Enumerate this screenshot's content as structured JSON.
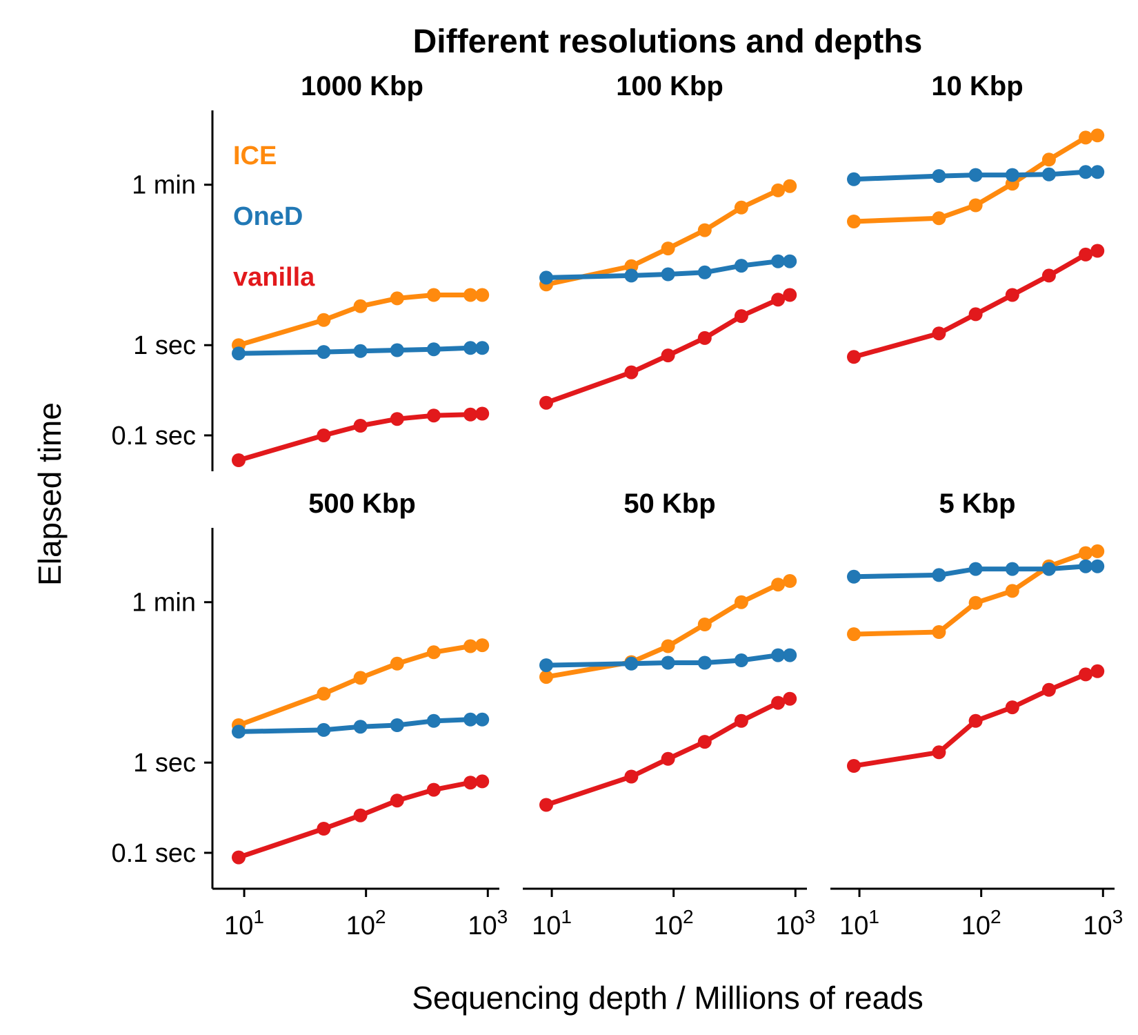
{
  "chart_data": {
    "type": "line",
    "title": "Different resolutions and depths",
    "xlabel": "Sequencing depth / Millions of reads",
    "ylabel": "Elapsed time",
    "x_scale": "log10",
    "y_scale": "log10",
    "xlim": [
      7.5,
      1150
    ],
    "ylim_seconds": [
      0.04,
      400
    ],
    "x_ticks": [
      {
        "value": 10,
        "base": "10",
        "exp": "1"
      },
      {
        "value": 100,
        "base": "10",
        "exp": "2"
      },
      {
        "value": 1000,
        "base": "10",
        "exp": "3"
      }
    ],
    "y_ticks": [
      {
        "value": 0.1,
        "label": "0.1 sec"
      },
      {
        "value": 1,
        "label": "1 sec"
      },
      {
        "value": 60,
        "label": "1 min"
      }
    ],
    "legend": {
      "placement": "top-left",
      "entries": [
        "ICE",
        "OneD",
        "vanilla"
      ]
    },
    "colors": {
      "ICE": "#ff8a0e",
      "OneD": "#2178b5",
      "vanilla": "#e2191c"
    },
    "x": [
      9,
      45,
      90,
      180,
      360,
      720,
      900
    ],
    "panels": [
      {
        "label": "1000 Kbp",
        "series": [
          {
            "name": "ICE",
            "values": [
              1.0,
              1.9,
              2.7,
              3.3,
              3.6,
              3.6,
              3.6
            ]
          },
          {
            "name": "OneD",
            "values": [
              0.81,
              0.84,
              0.86,
              0.88,
              0.9,
              0.93,
              0.93
            ]
          },
          {
            "name": "vanilla",
            "values": [
              0.053,
              0.1,
              0.128,
              0.152,
              0.166,
              0.17,
              0.174
            ]
          }
        ]
      },
      {
        "label": "100 Kbp",
        "series": [
          {
            "name": "ICE",
            "values": [
              4.7,
              7.5,
              11.8,
              18.8,
              33.5,
              52,
              58
            ]
          },
          {
            "name": "OneD",
            "values": [
              5.6,
              5.9,
              6.1,
              6.4,
              7.6,
              8.5,
              8.5
            ]
          },
          {
            "name": "vanilla",
            "values": [
              0.23,
              0.5,
              0.77,
              1.2,
              2.1,
              3.2,
              3.6
            ]
          }
        ]
      },
      {
        "label": "10 Kbp",
        "series": [
          {
            "name": "ICE",
            "values": [
              23.5,
              25.5,
              35.5,
              61.5,
              114,
              200,
              211
            ]
          },
          {
            "name": "OneD",
            "values": [
              69,
              75,
              77,
              77,
              78,
              83,
              83
            ]
          },
          {
            "name": "vanilla",
            "values": [
              0.74,
              1.35,
              2.2,
              3.6,
              5.9,
              10.1,
              11.1
            ]
          }
        ]
      },
      {
        "label": "500 Kbp",
        "series": [
          {
            "name": "ICE",
            "values": [
              2.6,
              5.8,
              8.7,
              12.5,
              16.7,
              19.5,
              20
            ]
          },
          {
            "name": "OneD",
            "values": [
              2.2,
              2.3,
              2.5,
              2.6,
              2.9,
              3.0,
              3.0
            ]
          },
          {
            "name": "vanilla",
            "values": [
              0.089,
              0.185,
              0.26,
              0.38,
              0.5,
              0.6,
              0.62
            ]
          }
        ]
      },
      {
        "label": "50 Kbp",
        "series": [
          {
            "name": "ICE",
            "values": [
              8.9,
              13,
              19.5,
              34,
              60,
              94,
              103
            ]
          },
          {
            "name": "OneD",
            "values": [
              12,
              12.5,
              12.8,
              12.8,
              13.6,
              15.5,
              15.5
            ]
          },
          {
            "name": "vanilla",
            "values": [
              0.34,
              0.7,
              1.1,
              1.7,
              2.9,
              4.6,
              5.1
            ]
          }
        ]
      },
      {
        "label": "5 Kbp",
        "series": [
          {
            "name": "ICE",
            "values": [
              26.5,
              28,
              59,
              80,
              150,
              210,
              220
            ]
          },
          {
            "name": "OneD",
            "values": [
              115,
              120,
              140,
              140,
              140,
              150,
              150
            ]
          },
          {
            "name": "vanilla",
            "values": [
              0.92,
              1.3,
              2.9,
              4.1,
              6.4,
              9.5,
              10.3
            ]
          }
        ]
      }
    ]
  }
}
